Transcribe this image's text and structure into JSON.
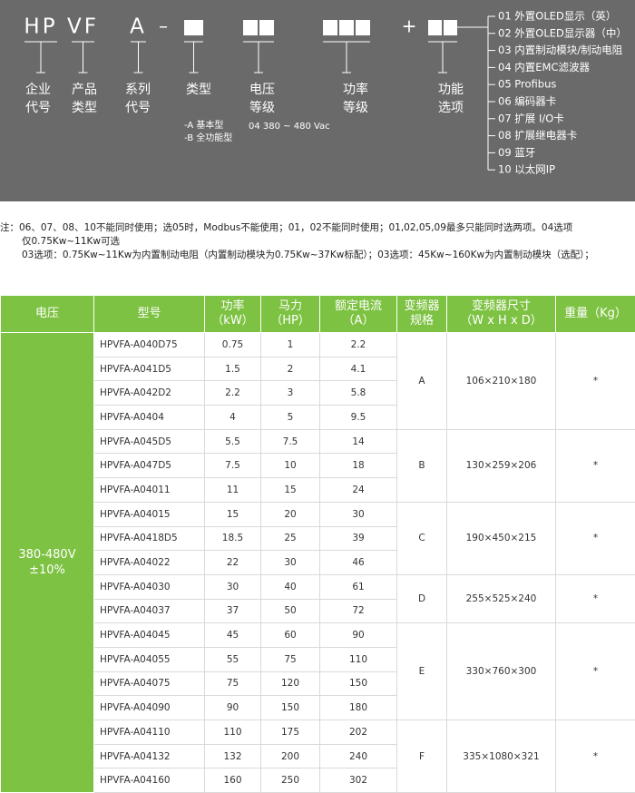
{
  "code": {
    "segments": [
      {
        "code": "HP",
        "label": [
          "企业",
          "代号"
        ]
      },
      {
        "code": "VF",
        "label": [
          "产品",
          "类型"
        ]
      },
      {
        "code": "A",
        "label": [
          "系列",
          "代号"
        ]
      },
      {
        "label": [
          "类型"
        ]
      },
      {
        "label": [
          "电压",
          "等级"
        ]
      },
      {
        "label": [
          "功率",
          "等级"
        ]
      },
      {
        "label": [
          "功能",
          "选项"
        ]
      }
    ],
    "dash": "–",
    "plus": "+",
    "type_notes": [
      "-A 基本型",
      "-B 全功能型"
    ],
    "voltage_note": "04 380 ~ 480 Vac",
    "options": [
      "01 外置OLED显示（英）",
      "02 外置OLED显示器（中）",
      "03 内置制动模块/制动电阻",
      "04 内置EMC滤波器",
      "05 Profibus",
      "06 编码器卡",
      "07 扩展 I/O卡",
      "08 扩展继电器卡",
      "09 蓝牙",
      "10 以太网IP"
    ]
  },
  "notes": [
    "注：06、07、08、10不能同时使用；选05时，Modbus不能使用；01，02不能同时使用；01,02,05,09最多只能同时选两项。04选项",
    "仅0.75Kw~11Kw可选",
    "03选项：0.75Kw~11Kw为内置制动电阻（内置制动模块为0.75Kw~37Kw标配）；03选项：45Kw~160Kw为内置制动模块（选配）；"
  ],
  "table": {
    "headers": [
      [
        "电压"
      ],
      [
        "型号"
      ],
      [
        "功率",
        "（kW）"
      ],
      [
        "马力",
        "（HP）"
      ],
      [
        "额定电流",
        "（A）"
      ],
      [
        "变频器",
        "规格"
      ],
      [
        "变频器尺寸",
        "（W x H x D）"
      ],
      [
        "重量（Kg）"
      ]
    ],
    "voltage": [
      "380-480V",
      "±10%"
    ],
    "groups": [
      {
        "spec": "A",
        "size": "106×210×180",
        "weight": "*",
        "rows": [
          [
            "HPVFA-A040D75",
            "0.75",
            "1",
            "2.2"
          ],
          [
            "HPVFA-A041D5",
            "1.5",
            "2",
            "4.1"
          ],
          [
            "HPVFA-A042D2",
            "2.2",
            "3",
            "5.8"
          ],
          [
            "HPVFA-A0404",
            "4",
            "5",
            "9.5"
          ]
        ]
      },
      {
        "spec": "B",
        "size": "130×259×206",
        "weight": "*",
        "rows": [
          [
            "HPVFA-A045D5",
            "5.5",
            "7.5",
            "14"
          ],
          [
            "HPVFA-A047D5",
            "7.5",
            "10",
            "18"
          ],
          [
            "HPVFA-A04011",
            "11",
            "15",
            "24"
          ]
        ]
      },
      {
        "spec": "C",
        "size": "190×450×215",
        "weight": "*",
        "rows": [
          [
            "HPVFA-A04015",
            "15",
            "20",
            "30"
          ],
          [
            "HPVFA-A0418D5",
            "18.5",
            "25",
            "39"
          ],
          [
            "HPVFA-A04022",
            "22",
            "30",
            "46"
          ]
        ]
      },
      {
        "spec": "D",
        "size": "255×525×240",
        "weight": "*",
        "rows": [
          [
            "HPVFA-A04030",
            "30",
            "40",
            "61"
          ],
          [
            "HPVFA-A04037",
            "37",
            "50",
            "72"
          ]
        ]
      },
      {
        "spec": "E",
        "size": "330×760×300",
        "weight": "*",
        "rows": [
          [
            "HPVFA-A04045",
            "45",
            "60",
            "90"
          ],
          [
            "HPVFA-A04055",
            "55",
            "75",
            "110"
          ],
          [
            "HPVFA-A04075",
            "75",
            "120",
            "150"
          ],
          [
            "HPVFA-A04090",
            "90",
            "150",
            "180"
          ]
        ]
      },
      {
        "spec": "F",
        "size": "335×1080×321",
        "weight": "*",
        "rows": [
          [
            "HPVFA-A04110",
            "110",
            "175",
            "202"
          ],
          [
            "HPVFA-A04132",
            "132",
            "200",
            "240"
          ],
          [
            "HPVFA-A04160",
            "160",
            "250",
            "302"
          ]
        ]
      }
    ]
  }
}
